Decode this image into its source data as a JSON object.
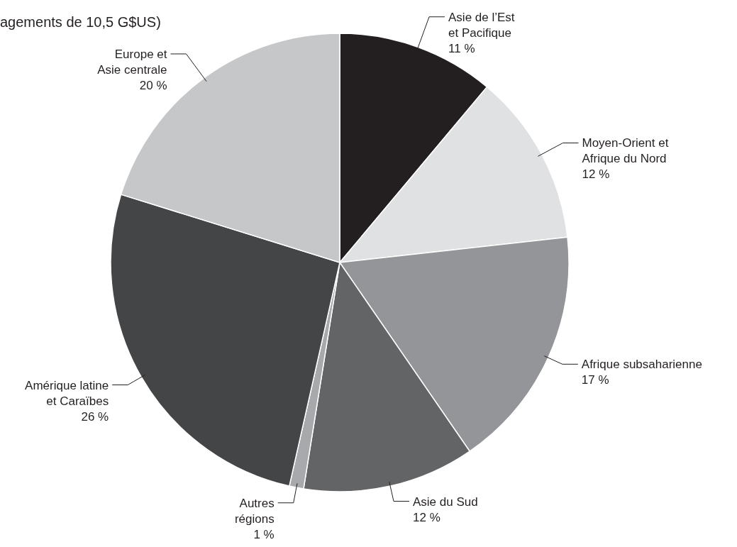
{
  "chart_data": {
    "type": "pie",
    "subtitle": "agements de 10,5 G$US)",
    "categories": [
      "Asie de l’Est\net Pacifique",
      "Moyen-Orient et\nAfrique du Nord",
      "Afrique subsaharienne",
      "Asie du Sud",
      "Autres\nrégions",
      "Amérique latine\net Caraïbes",
      "Europe et\nAsie centrale"
    ],
    "values": [
      11,
      12,
      17,
      12,
      1,
      26,
      20
    ],
    "value_labels": [
      "11 %",
      "12 %",
      "17 %",
      "12 %",
      "1 %",
      "26 %",
      "20 %"
    ],
    "colors": [
      "#231f20",
      "#e0e1e3",
      "#939598",
      "#636466",
      "#a7a9ac",
      "#444547",
      "#c6c7c9"
    ],
    "legend": false
  }
}
